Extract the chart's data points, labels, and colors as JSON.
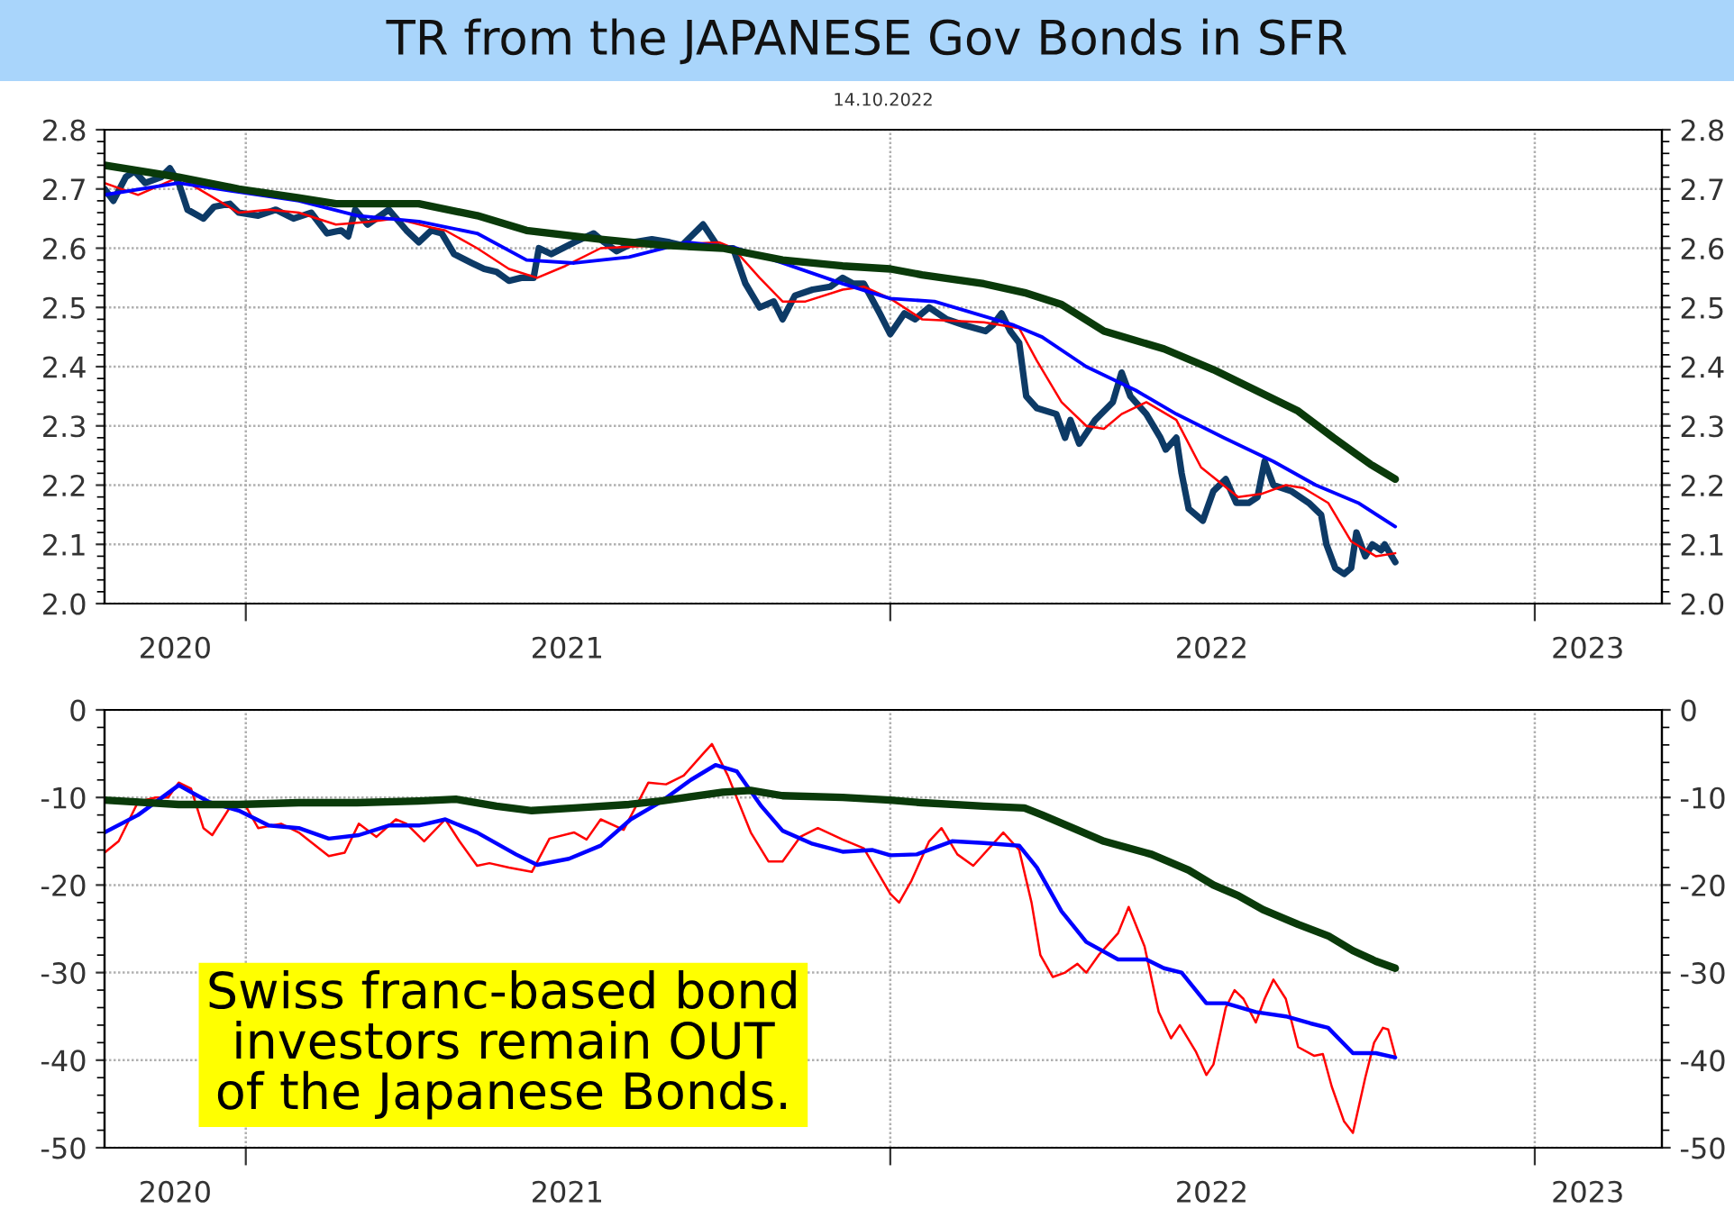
{
  "chart_data": [
    {
      "type": "line",
      "title": "TR from the JAPANESE Gov Bonds in SFR",
      "subtitle": "14.10.2022",
      "xlim": [
        "2020-10-13",
        "2023-03-14"
      ],
      "xticks": [
        {
          "value": "2021-01-01",
          "label": null
        },
        {
          "value": "2022-01-01",
          "label": null
        },
        {
          "value": "2023-01-01",
          "label": null
        },
        {
          "value": "2020-11-22",
          "label": "2020"
        },
        {
          "value": "2021-07-02",
          "label": "2021"
        },
        {
          "value": "2022-07-02",
          "label": "2022"
        },
        {
          "value": "2023-01-31",
          "label": "2023"
        }
      ],
      "ylim": [
        2.0,
        2.8
      ],
      "yticks": [
        {
          "value": 2,
          "label": "2.0"
        },
        2.1,
        2.2,
        2.3,
        2.4,
        2.5,
        2.6,
        2.7,
        2.8
      ],
      "y2lim": [
        2.0,
        2.8
      ],
      "y2ticks": [
        {
          "value": 2,
          "label": "2.0"
        },
        2.1,
        2.2,
        2.3,
        2.4,
        2.5,
        2.6,
        2.7,
        2.8
      ],
      "grid": true,
      "series": [
        {
          "color": "#0d3a66",
          "x": [
            "2020-10-13",
            "2020-10-18",
            "2020-10-25",
            "2020-10-30",
            "2020-11-05",
            "2020-11-14",
            "2020-11-19",
            "2020-11-24",
            "2020-11-29",
            "2020-12-08",
            "2020-12-14",
            "2020-12-23",
            "2020-12-28",
            "2021-01-08",
            "2021-01-18",
            "2021-01-28",
            "2021-02-07",
            "2021-02-16",
            "2021-02-24",
            "2021-02-28",
            "2021-03-04",
            "2021-03-11",
            "2021-03-23",
            "2021-04-02",
            "2021-04-09",
            "2021-04-16",
            "2021-04-22",
            "2021-04-29",
            "2021-05-09",
            "2021-05-16",
            "2021-05-23",
            "2021-05-30",
            "2021-06-06",
            "2021-06-13",
            "2021-06-16",
            "2021-06-23",
            "2021-07-06",
            "2021-07-17",
            "2021-07-23",
            "2021-07-30",
            "2021-08-09",
            "2021-08-19",
            "2021-08-29",
            "2021-09-05",
            "2021-09-17",
            "2021-09-26",
            "2021-10-04",
            "2021-10-11",
            "2021-10-19",
            "2021-10-27",
            "2021-11-01",
            "2021-11-08",
            "2021-11-18",
            "2021-11-28",
            "2021-12-05",
            "2021-12-11",
            "2021-12-17",
            "2021-12-26",
            "2022-01-01",
            "2022-01-09",
            "2022-01-15",
            "2022-01-23",
            "2022-02-02",
            "2022-02-12",
            "2022-02-24",
            "2022-02-28",
            "2022-03-05",
            "2022-03-10",
            "2022-03-15",
            "2022-03-19",
            "2022-03-25",
            "2022-04-05",
            "2022-04-10",
            "2022-04-13",
            "2022-04-18",
            "2022-04-27",
            "2022-05-07",
            "2022-05-12",
            "2022-05-17",
            "2022-05-26",
            "2022-06-03",
            "2022-06-06",
            "2022-06-12",
            "2022-06-15",
            "2022-06-19",
            "2022-06-27",
            "2022-07-03",
            "2022-07-10",
            "2022-07-16",
            "2022-07-23",
            "2022-07-28",
            "2022-08-01",
            "2022-08-06",
            "2022-08-16",
            "2022-08-26",
            "2022-09-02",
            "2022-09-05",
            "2022-09-10",
            "2022-09-15",
            "2022-09-19",
            "2022-09-22",
            "2022-09-27",
            "2022-10-01",
            "2022-10-06",
            "2022-10-08",
            "2022-10-14"
          ],
          "values": [
            2.7,
            2.68,
            2.72,
            2.73,
            2.71,
            2.72,
            2.735,
            2.71,
            2.665,
            2.65,
            2.67,
            2.675,
            2.66,
            2.655,
            2.665,
            2.65,
            2.66,
            2.625,
            2.63,
            2.62,
            2.665,
            2.64,
            2.665,
            2.63,
            2.61,
            2.63,
            2.625,
            2.59,
            2.575,
            2.565,
            2.56,
            2.545,
            2.55,
            2.55,
            2.6,
            2.59,
            2.61,
            2.625,
            2.61,
            2.595,
            2.61,
            2.615,
            2.61,
            2.605,
            2.64,
            2.6,
            2.6,
            2.54,
            2.5,
            2.51,
            2.48,
            2.52,
            2.53,
            2.535,
            2.55,
            2.54,
            2.54,
            2.49,
            2.455,
            2.49,
            2.48,
            2.5,
            2.48,
            2.47,
            2.46,
            2.47,
            2.49,
            2.46,
            2.44,
            2.35,
            2.33,
            2.32,
            2.28,
            2.31,
            2.27,
            2.31,
            2.34,
            2.39,
            2.35,
            2.32,
            2.28,
            2.26,
            2.28,
            2.22,
            2.16,
            2.14,
            2.19,
            2.21,
            2.17,
            2.17,
            2.18,
            2.24,
            2.2,
            2.19,
            2.17,
            2.15,
            2.1,
            2.06,
            2.05,
            2.06,
            2.12,
            2.08,
            2.1,
            2.09,
            2.1,
            2.07
          ]
        },
        {
          "color": "#ff0000",
          "x": [
            "2020-10-13",
            "2020-11-01",
            "2020-11-24",
            "2020-12-28",
            "2021-01-14",
            "2021-01-31",
            "2021-02-21",
            "2021-03-13",
            "2021-03-27",
            "2021-04-16",
            "2021-04-24",
            "2021-05-12",
            "2021-05-30",
            "2021-06-15",
            "2021-07-01",
            "2021-07-21",
            "2021-08-24",
            "2021-09-26",
            "2021-10-04",
            "2021-10-19",
            "2021-11-01",
            "2021-11-14",
            "2021-12-05",
            "2021-12-17",
            "2022-01-01",
            "2022-01-19",
            "2022-02-23",
            "2022-03-15",
            "2022-03-25",
            "2022-04-08",
            "2022-04-22",
            "2022-05-02",
            "2022-05-12",
            "2022-05-26",
            "2022-06-12",
            "2022-06-26",
            "2022-07-17",
            "2022-07-30",
            "2022-08-13",
            "2022-08-23",
            "2022-09-06",
            "2022-09-19",
            "2022-10-03",
            "2022-10-14"
          ],
          "values": [
            2.71,
            2.69,
            2.72,
            2.66,
            2.665,
            2.66,
            2.64,
            2.645,
            2.65,
            2.635,
            2.63,
            2.6,
            2.565,
            2.55,
            2.57,
            2.6,
            2.605,
            2.61,
            2.6,
            2.55,
            2.51,
            2.51,
            2.53,
            2.535,
            2.515,
            2.48,
            2.475,
            2.465,
            2.41,
            2.34,
            2.3,
            2.295,
            2.32,
            2.34,
            2.31,
            2.23,
            2.18,
            2.185,
            2.2,
            2.195,
            2.17,
            2.105,
            2.08,
            2.085
          ]
        },
        {
          "color": "#0000ff",
          "x": [
            "2020-10-13",
            "2020-11-24",
            "2020-12-28",
            "2021-01-31",
            "2021-03-05",
            "2021-04-09",
            "2021-05-12",
            "2021-06-09",
            "2021-07-06",
            "2021-08-06",
            "2021-09-08",
            "2021-10-06",
            "2021-11-01",
            "2021-12-05",
            "2022-01-01",
            "2022-01-26",
            "2022-03-12",
            "2022-03-28",
            "2022-04-22",
            "2022-05-20",
            "2022-06-12",
            "2022-07-09",
            "2022-08-06",
            "2022-08-30",
            "2022-09-23",
            "2022-10-14"
          ],
          "values": [
            2.69,
            2.71,
            2.695,
            2.68,
            2.655,
            2.645,
            2.625,
            2.58,
            2.575,
            2.585,
            2.61,
            2.6,
            2.575,
            2.54,
            2.515,
            2.51,
            2.47,
            2.45,
            2.4,
            2.36,
            2.32,
            2.28,
            2.24,
            2.2,
            2.17,
            2.13
          ]
        },
        {
          "color": "#0a3a0a",
          "x": [
            "2020-10-13",
            "2020-11-24",
            "2020-12-28",
            "2021-01-31",
            "2021-02-21",
            "2021-04-09",
            "2021-05-12",
            "2021-06-09",
            "2021-07-21",
            "2021-08-24",
            "2021-09-28",
            "2021-11-01",
            "2021-12-05",
            "2022-01-01",
            "2022-01-19",
            "2022-02-23",
            "2022-03-18",
            "2022-04-08",
            "2022-05-02",
            "2022-06-05",
            "2022-07-03",
            "2022-07-27",
            "2022-08-20",
            "2022-09-09",
            "2022-09-30",
            "2022-10-14"
          ],
          "values": [
            2.74,
            2.72,
            2.7,
            2.685,
            2.675,
            2.675,
            2.655,
            2.63,
            2.615,
            2.605,
            2.6,
            2.58,
            2.57,
            2.565,
            2.555,
            2.54,
            2.525,
            2.505,
            2.46,
            2.43,
            2.395,
            2.36,
            2.325,
            2.28,
            2.235,
            2.21
          ]
        }
      ]
    },
    {
      "type": "line",
      "xlim": [
        "2020-10-13",
        "2023-03-14"
      ],
      "xticks": [
        {
          "value": "2021-01-01",
          "label": null
        },
        {
          "value": "2022-01-01",
          "label": null
        },
        {
          "value": "2023-01-01",
          "label": null
        },
        {
          "value": "2020-11-22",
          "label": "2020"
        },
        {
          "value": "2021-07-02",
          "label": "2021"
        },
        {
          "value": "2022-07-02",
          "label": "2022"
        },
        {
          "value": "2023-01-31",
          "label": "2023"
        }
      ],
      "ylim": [
        -50,
        0
      ],
      "yticks": [
        -50,
        -40,
        -30,
        -20,
        -10,
        0
      ],
      "y2lim": [
        -50,
        0
      ],
      "y2ticks": [
        -50,
        -40,
        -30,
        -20,
        -10,
        0
      ],
      "grid": true,
      "annotations": [
        "Swiss franc-based bond\ninvestors remain OUT\nof the Japanese Bonds."
      ],
      "series": [
        {
          "color": "#ff0000",
          "x": [
            "2020-10-13",
            "2020-10-21",
            "2020-11-01",
            "2020-11-11",
            "2020-11-18",
            "2020-11-24",
            "2020-12-01",
            "2020-12-08",
            "2020-12-13",
            "2020-12-25",
            "2021-01-01",
            "2021-01-08",
            "2021-01-21",
            "2021-01-31",
            "2021-02-17",
            "2021-02-26",
            "2021-03-06",
            "2021-03-16",
            "2021-03-27",
            "2021-04-02",
            "2021-04-12",
            "2021-04-24",
            "2021-05-02",
            "2021-05-12",
            "2021-05-19",
            "2021-05-30",
            "2021-06-12",
            "2021-06-22",
            "2021-07-06",
            "2021-07-13",
            "2021-07-21",
            "2021-08-03",
            "2021-08-17",
            "2021-08-27",
            "2021-09-06",
            "2021-09-17",
            "2021-09-22",
            "2021-10-01",
            "2021-10-14",
            "2021-10-24",
            "2021-11-01",
            "2021-11-11",
            "2021-11-21",
            "2021-12-05",
            "2021-12-17",
            "2022-01-01",
            "2022-01-06",
            "2022-01-13",
            "2022-01-23",
            "2022-01-30",
            "2022-02-08",
            "2022-02-17",
            "2022-03-06",
            "2022-03-15",
            "2022-03-22",
            "2022-03-27",
            "2022-04-03",
            "2022-04-10",
            "2022-04-17",
            "2022-04-22",
            "2022-04-29",
            "2022-05-10",
            "2022-05-16",
            "2022-05-25",
            "2022-06-02",
            "2022-06-09",
            "2022-06-14",
            "2022-06-23",
            "2022-06-29",
            "2022-07-03",
            "2022-07-10",
            "2022-07-15",
            "2022-07-20",
            "2022-07-27",
            "2022-08-01",
            "2022-08-06",
            "2022-08-13",
            "2022-08-20",
            "2022-08-29",
            "2022-09-03",
            "2022-09-08",
            "2022-09-15",
            "2022-09-20",
            "2022-09-27",
            "2022-10-02",
            "2022-10-07",
            "2022-10-10",
            "2022-10-14"
          ],
          "values": [
            -16.3,
            -15,
            -10.5,
            -10,
            -10,
            -8.3,
            -9,
            -13.5,
            -14.3,
            -10.5,
            -11,
            -13.5,
            -13,
            -14,
            -16.7,
            -16.3,
            -13,
            -14.5,
            -12.5,
            -13,
            -15,
            -12.5,
            -15,
            -17.8,
            -17.5,
            -18,
            -18.5,
            -14.7,
            -14,
            -14.8,
            -12.5,
            -13.7,
            -8.3,
            -8.5,
            -7.5,
            -5,
            -3.9,
            -7.5,
            -14,
            -17.3,
            -17.3,
            -14.5,
            -13.5,
            -14.8,
            -15.8,
            -21,
            -22,
            -19.5,
            -15,
            -13.5,
            -16.5,
            -17.8,
            -14,
            -16,
            -22,
            -28,
            -30.5,
            -30,
            -29,
            -30,
            -28,
            -25.5,
            -22.5,
            -27,
            -34.5,
            -37.5,
            -36,
            -39,
            -41.7,
            -40.5,
            -34,
            -32,
            -33,
            -35.7,
            -33,
            -30.8,
            -33,
            -38.5,
            -39.5,
            -39.3,
            -43,
            -47,
            -48.3,
            -42,
            -38,
            -36.3,
            -36.5,
            -39.5
          ]
        },
        {
          "color": "#0000ff",
          "x": [
            "2020-10-13",
            "2020-11-01",
            "2020-11-24",
            "2020-12-11",
            "2020-12-28",
            "2021-01-14",
            "2021-01-31",
            "2021-02-17",
            "2021-03-06",
            "2021-03-23",
            "2021-04-09",
            "2021-04-24",
            "2021-05-12",
            "2021-06-03",
            "2021-06-15",
            "2021-07-03",
            "2021-07-21",
            "2021-08-07",
            "2021-08-24",
            "2021-09-10",
            "2021-09-24",
            "2021-10-06",
            "2021-10-20",
            "2021-11-01",
            "2021-11-18",
            "2021-12-05",
            "2021-12-22",
            "2022-01-01",
            "2022-01-16",
            "2022-02-05",
            "2022-02-23",
            "2022-03-15",
            "2022-03-25",
            "2022-04-08",
            "2022-04-22",
            "2022-05-10",
            "2022-05-26",
            "2022-06-05",
            "2022-06-15",
            "2022-06-29",
            "2022-07-10",
            "2022-07-27",
            "2022-08-13",
            "2022-08-27",
            "2022-09-06",
            "2022-09-20",
            "2022-10-03",
            "2022-10-14"
          ],
          "values": [
            -14,
            -12,
            -8.6,
            -10.5,
            -11.5,
            -13.2,
            -13.5,
            -14.7,
            -14.3,
            -13.2,
            -13.2,
            -12.5,
            -14,
            -16.5,
            -17.7,
            -17,
            -15.5,
            -12.5,
            -10.5,
            -8,
            -6.3,
            -7,
            -11,
            -13.8,
            -15.3,
            -16.2,
            -16,
            -16.6,
            -16.5,
            -15,
            -15.2,
            -15.5,
            -18,
            -23,
            -26.5,
            -28.5,
            -28.5,
            -29.5,
            -30,
            -33.5,
            -33.5,
            -34.5,
            -35,
            -35.8,
            -36.3,
            -39.2,
            -39.2,
            -39.7
          ]
        },
        {
          "color": "#0a3a0a",
          "x": [
            "2020-10-13",
            "2020-11-24",
            "2020-12-28",
            "2021-01-31",
            "2021-03-05",
            "2021-04-09",
            "2021-04-30",
            "2021-05-23",
            "2021-06-12",
            "2021-07-06",
            "2021-08-06",
            "2021-08-24",
            "2021-09-28",
            "2021-10-14",
            "2021-11-01",
            "2021-12-05",
            "2022-01-01",
            "2022-01-19",
            "2022-02-23",
            "2022-03-18",
            "2022-03-28",
            "2022-04-18",
            "2022-05-02",
            "2022-05-29",
            "2022-06-19",
            "2022-07-03",
            "2022-07-17",
            "2022-07-31",
            "2022-08-20",
            "2022-09-06",
            "2022-09-20",
            "2022-10-03",
            "2022-10-14"
          ],
          "values": [
            -10.3,
            -10.8,
            -10.8,
            -10.6,
            -10.6,
            -10.4,
            -10.2,
            -11,
            -11.5,
            -11.2,
            -10.8,
            -10.4,
            -9.4,
            -9.2,
            -9.8,
            -10,
            -10.3,
            -10.6,
            -11,
            -11.2,
            -12,
            -13.8,
            -15,
            -16.5,
            -18.3,
            -20,
            -21.2,
            -22.8,
            -24.5,
            -25.8,
            -27.5,
            -28.7,
            -29.5
          ]
        }
      ]
    }
  ]
}
